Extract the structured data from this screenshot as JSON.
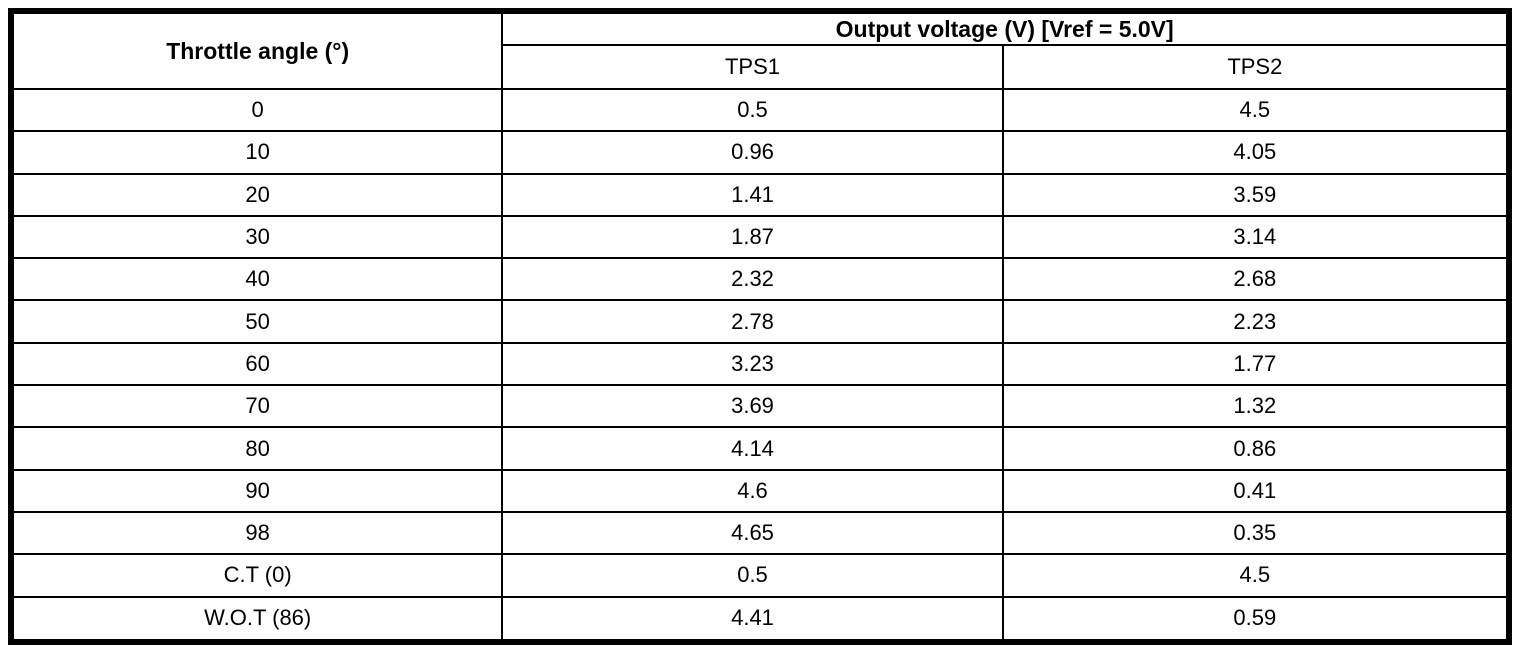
{
  "colors": {
    "border": "#000000",
    "background": "#ffffff",
    "text": "#000000"
  },
  "table": {
    "col1_header": "Throttle angle (°)",
    "group_header": "Output voltage (V) [Vref = 5.0V]",
    "sub_headers": [
      "TPS1",
      "TPS2"
    ],
    "rows": [
      {
        "angle": "0",
        "tps1": "0.5",
        "tps2": "4.5"
      },
      {
        "angle": "10",
        "tps1": "0.96",
        "tps2": "4.05"
      },
      {
        "angle": "20",
        "tps1": "1.41",
        "tps2": "3.59"
      },
      {
        "angle": "30",
        "tps1": "1.87",
        "tps2": "3.14"
      },
      {
        "angle": "40",
        "tps1": "2.32",
        "tps2": "2.68"
      },
      {
        "angle": "50",
        "tps1": "2.78",
        "tps2": "2.23"
      },
      {
        "angle": "60",
        "tps1": "3.23",
        "tps2": "1.77"
      },
      {
        "angle": "70",
        "tps1": "3.69",
        "tps2": "1.32"
      },
      {
        "angle": "80",
        "tps1": "4.14",
        "tps2": "0.86"
      },
      {
        "angle": "90",
        "tps1": "4.6",
        "tps2": "0.41"
      },
      {
        "angle": "98",
        "tps1": "4.65",
        "tps2": "0.35"
      },
      {
        "angle": "C.T (0)",
        "tps1": "0.5",
        "tps2": "4.5"
      },
      {
        "angle": "W.O.T (86)",
        "tps1": "4.41",
        "tps2": "0.59"
      }
    ]
  },
  "chart_data": {
    "type": "table",
    "title": "Output voltage (V) [Vref = 5.0V]",
    "columns": [
      "Throttle angle (°)",
      "TPS1",
      "TPS2"
    ],
    "rows": [
      [
        "0",
        0.5,
        4.5
      ],
      [
        "10",
        0.96,
        4.05
      ],
      [
        "20",
        1.41,
        3.59
      ],
      [
        "30",
        1.87,
        3.14
      ],
      [
        "40",
        2.32,
        2.68
      ],
      [
        "50",
        2.78,
        2.23
      ],
      [
        "60",
        3.23,
        1.77
      ],
      [
        "70",
        3.69,
        1.32
      ],
      [
        "80",
        4.14,
        0.86
      ],
      [
        "90",
        4.6,
        0.41
      ],
      [
        "98",
        4.65,
        0.35
      ],
      [
        "C.T (0)",
        0.5,
        4.5
      ],
      [
        "W.O.T (86)",
        4.41,
        0.59
      ]
    ]
  }
}
